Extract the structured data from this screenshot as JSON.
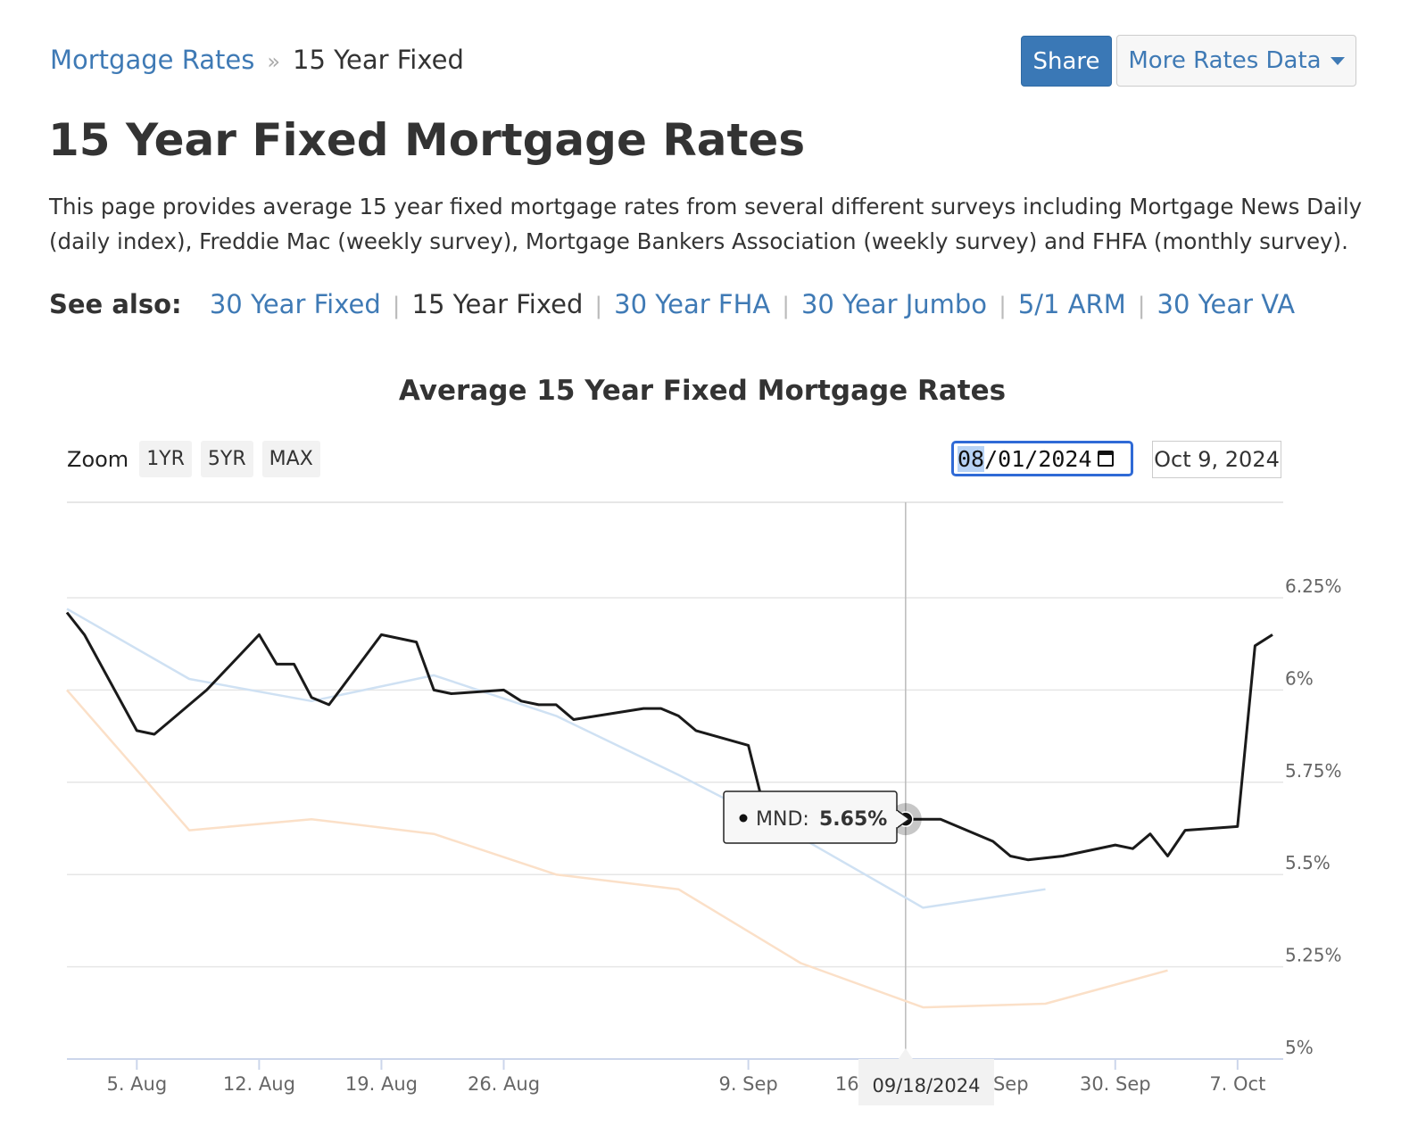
{
  "breadcrumb": {
    "parent": "Mortgage Rates",
    "separator": "»",
    "current": "15 Year Fixed"
  },
  "buttons": {
    "share": "Share",
    "more_rates": "More Rates Data"
  },
  "page_title": "15 Year Fixed Mortgage Rates",
  "intro": "This page provides average 15 year fixed mortgage rates from several different surveys including Mortgage News Daily (daily index), Freddie Mac (weekly survey), Mortgage Bankers Association (weekly survey) and FHFA (monthly survey).",
  "see_also": {
    "label": "See also:",
    "separator": "|",
    "items": [
      {
        "label": "30 Year Fixed",
        "active": false
      },
      {
        "label": "15 Year Fixed",
        "active": true
      },
      {
        "label": "30 Year FHA",
        "active": false
      },
      {
        "label": "30 Year Jumbo",
        "active": false
      },
      {
        "label": "5/1 ARM",
        "active": false
      },
      {
        "label": "30 Year VA",
        "active": false
      }
    ]
  },
  "zoom": {
    "label": "Zoom",
    "buttons": [
      "1YR",
      "5YR",
      "MAX"
    ]
  },
  "range": {
    "from_prefix": "08",
    "from_rest": "/01/2024",
    "to": "Oct 9, 2024"
  },
  "colors": {
    "link": "#3f7ab5",
    "share_bg": "#3a78b6",
    "mnd_line": "#1a1a1a",
    "series_blue": "#cfe1f3",
    "series_orange": "#fbe0c8",
    "grid": "#e6e6e6"
  },
  "chart_data": {
    "type": "line",
    "title": "Average 15 Year Fixed Mortgage Rates",
    "x_type": "date",
    "xlim": [
      "2024-08-01",
      "2024-10-09"
    ],
    "ylim": [
      5.0,
      6.5
    ],
    "y_ticks": [
      5.0,
      5.25,
      5.5,
      5.75,
      6.0,
      6.25
    ],
    "y_tick_labels": [
      "5%",
      "5.25%",
      "5.5%",
      "5.75%",
      "6%",
      "6.25%"
    ],
    "x_ticks": [
      "2024-08-05",
      "2024-08-12",
      "2024-08-19",
      "2024-08-26",
      "2024-09-09",
      "2024-09-16",
      "2024-09-23",
      "2024-09-30",
      "2024-10-07"
    ],
    "x_tick_labels": [
      "5. Aug",
      "12. Aug",
      "19. Aug",
      "26. Aug",
      "9. Sep",
      "16. Sep",
      "23. Sep",
      "30. Sep",
      "7. Oct"
    ],
    "grid": true,
    "series": [
      {
        "name": "MND",
        "points": [
          [
            "2024-08-01",
            6.21
          ],
          [
            "2024-08-02",
            6.15
          ],
          [
            "2024-08-05",
            5.89
          ],
          [
            "2024-08-06",
            5.88
          ],
          [
            "2024-08-07",
            5.92
          ],
          [
            "2024-08-08",
            5.96
          ],
          [
            "2024-08-09",
            6.0
          ],
          [
            "2024-08-12",
            6.15
          ],
          [
            "2024-08-13",
            6.07
          ],
          [
            "2024-08-14",
            6.07
          ],
          [
            "2024-08-15",
            5.98
          ],
          [
            "2024-08-16",
            5.96
          ],
          [
            "2024-08-19",
            6.15
          ],
          [
            "2024-08-20",
            6.14
          ],
          [
            "2024-08-21",
            6.13
          ],
          [
            "2024-08-22",
            6.0
          ],
          [
            "2024-08-23",
            5.99
          ],
          [
            "2024-08-26",
            6.0
          ],
          [
            "2024-08-27",
            5.97
          ],
          [
            "2024-08-28",
            5.96
          ],
          [
            "2024-08-29",
            5.96
          ],
          [
            "2024-08-30",
            5.92
          ],
          [
            "2024-09-03",
            5.95
          ],
          [
            "2024-09-04",
            5.95
          ],
          [
            "2024-09-05",
            5.93
          ],
          [
            "2024-09-06",
            5.89
          ],
          [
            "2024-09-09",
            5.85
          ],
          [
            "2024-09-10",
            5.66
          ],
          [
            "2024-09-11",
            5.63
          ],
          [
            "2024-09-12",
            5.62
          ],
          [
            "2024-09-13",
            5.62
          ],
          [
            "2024-09-16",
            5.63
          ],
          [
            "2024-09-17",
            5.65
          ],
          [
            "2024-09-18",
            5.65
          ],
          [
            "2024-09-19",
            5.65
          ],
          [
            "2024-09-20",
            5.65
          ],
          [
            "2024-09-23",
            5.59
          ],
          [
            "2024-09-24",
            5.55
          ],
          [
            "2024-09-25",
            5.54
          ],
          [
            "2024-09-26",
            5.545
          ],
          [
            "2024-09-27",
            5.55
          ],
          [
            "2024-09-30",
            5.58
          ],
          [
            "2024-10-01",
            5.57
          ],
          [
            "2024-10-02",
            5.61
          ],
          [
            "2024-10-03",
            5.55
          ],
          [
            "2024-10-04",
            5.62
          ],
          [
            "2024-10-07",
            5.63
          ],
          [
            "2024-10-08",
            6.12
          ],
          [
            "2024-10-09",
            6.15
          ]
        ]
      },
      {
        "name": "",
        "color_key": "series_blue",
        "points": [
          [
            "2024-08-01",
            6.22
          ],
          [
            "2024-08-08",
            6.03
          ],
          [
            "2024-08-15",
            5.97
          ],
          [
            "2024-08-22",
            6.04
          ],
          [
            "2024-08-29",
            5.93
          ],
          [
            "2024-09-05",
            5.77
          ],
          [
            "2024-09-12",
            5.6
          ],
          [
            "2024-09-19",
            5.41
          ],
          [
            "2024-09-26",
            5.46
          ]
        ]
      },
      {
        "name": "",
        "color_key": "series_orange",
        "points": [
          [
            "2024-08-01",
            6.0
          ],
          [
            "2024-08-08",
            5.62
          ],
          [
            "2024-08-15",
            5.65
          ],
          [
            "2024-08-22",
            5.61
          ],
          [
            "2024-08-29",
            5.5
          ],
          [
            "2024-09-05",
            5.46
          ],
          [
            "2024-09-12",
            5.26
          ],
          [
            "2024-09-19",
            5.14
          ],
          [
            "2024-09-26",
            5.15
          ],
          [
            "2024-10-03",
            5.24
          ]
        ]
      }
    ],
    "tooltip": {
      "series": "MND",
      "label": "MND:",
      "value": "5.65%",
      "date": "09/18/2024",
      "date_iso": "2024-09-18"
    }
  }
}
